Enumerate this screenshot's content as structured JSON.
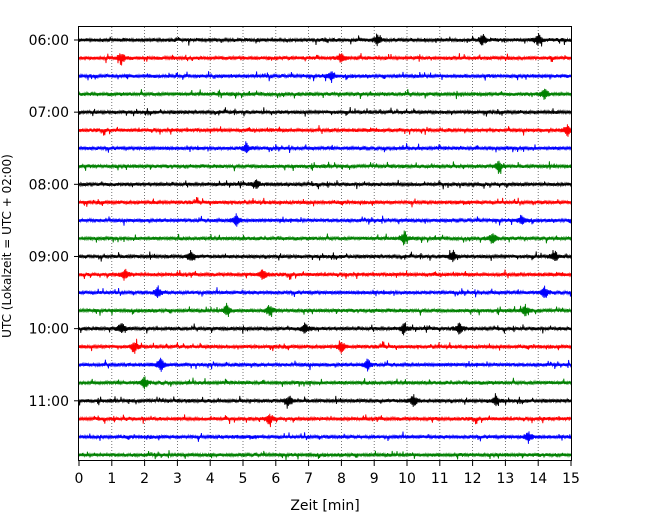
{
  "chart_data": {
    "type": "line",
    "title": "",
    "xlabel": "Zeit  [min]",
    "ylabel": "UTC (Lokalzeit = UTC + 02:00)",
    "xlim": [
      0,
      15
    ],
    "x_ticks": [
      "0",
      "1",
      "2",
      "3",
      "4",
      "5",
      "6",
      "7",
      "8",
      "9",
      "10",
      "11",
      "12",
      "13",
      "14",
      "15"
    ],
    "y_ticks": [
      "06:00",
      "07:00",
      "08:00",
      "09:00",
      "10:00",
      "11:00"
    ],
    "grid": "vertical dotted lines at each minute",
    "line_colors": [
      "#000000",
      "#ff0000",
      "#0000ff",
      "#008000"
    ],
    "traces": [
      {
        "start": "06:00",
        "color": "black",
        "events_min": [
          12.3,
          14.0,
          9.1
        ]
      },
      {
        "start": "06:15",
        "color": "red",
        "events_min": [
          1.3,
          8.0
        ]
      },
      {
        "start": "06:30",
        "color": "blue",
        "events_min": [
          7.7
        ]
      },
      {
        "start": "06:45",
        "color": "green",
        "events_min": [
          14.2
        ]
      },
      {
        "start": "07:00",
        "color": "black",
        "events_min": []
      },
      {
        "start": "07:15",
        "color": "red",
        "events_min": [
          14.9
        ]
      },
      {
        "start": "07:30",
        "color": "blue",
        "events_min": [
          5.1
        ]
      },
      {
        "start": "07:45",
        "color": "green",
        "events_min": [
          12.8
        ]
      },
      {
        "start": "08:00",
        "color": "black",
        "events_min": [
          5.4
        ]
      },
      {
        "start": "08:15",
        "color": "red",
        "events_min": []
      },
      {
        "start": "08:30",
        "color": "blue",
        "events_min": [
          13.5,
          4.8
        ]
      },
      {
        "start": "08:45",
        "color": "green",
        "events_min": [
          9.9,
          12.6
        ]
      },
      {
        "start": "09:00",
        "color": "black",
        "events_min": [
          3.4,
          11.4,
          14.5
        ]
      },
      {
        "start": "09:15",
        "color": "red",
        "events_min": [
          1.4,
          5.6
        ]
      },
      {
        "start": "09:30",
        "color": "blue",
        "events_min": [
          2.4,
          14.2
        ]
      },
      {
        "start": "09:45",
        "color": "green",
        "events_min": [
          4.5,
          5.8,
          13.6
        ]
      },
      {
        "start": "10:00",
        "color": "black",
        "events_min": [
          1.3,
          6.9,
          9.9,
          11.6
        ]
      },
      {
        "start": "10:15",
        "color": "red",
        "events_min": [
          1.7,
          8.0
        ]
      },
      {
        "start": "10:30",
        "color": "blue",
        "events_min": [
          2.5,
          8.8
        ]
      },
      {
        "start": "10:45",
        "color": "green",
        "events_min": [
          2.0
        ]
      },
      {
        "start": "11:00",
        "color": "black",
        "events_min": [
          6.4,
          10.2,
          12.7
        ]
      },
      {
        "start": "11:15",
        "color": "red",
        "events_min": [
          5.8
        ]
      },
      {
        "start": "11:30",
        "color": "blue",
        "events_min": [
          13.7
        ]
      },
      {
        "start": "11:45",
        "color": "green",
        "events_min": []
      }
    ]
  }
}
